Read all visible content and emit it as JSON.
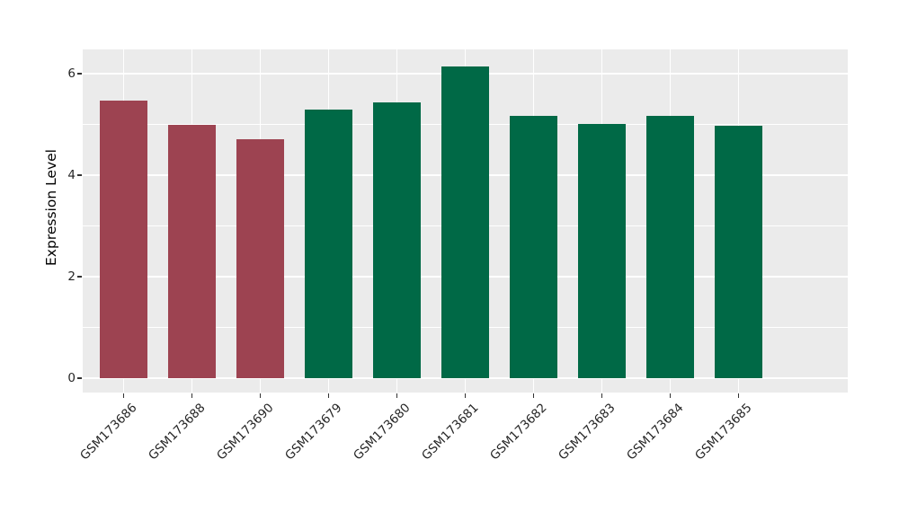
{
  "chart_data": {
    "type": "bar",
    "title": "",
    "xlabel": "",
    "ylabel": "Expression Level",
    "categories": [
      "GSM173686",
      "GSM173688",
      "GSM173690",
      "GSM173679",
      "GSM173680",
      "GSM173681",
      "GSM173682",
      "GSM173683",
      "GSM173684",
      "GSM173685"
    ],
    "values": [
      5.47,
      4.99,
      4.71,
      5.29,
      5.43,
      6.14,
      5.17,
      5.01,
      5.17,
      4.97
    ],
    "bar_colors": [
      "#9D4351",
      "#9D4351",
      "#9D4351",
      "#006946",
      "#006946",
      "#006946",
      "#006946",
      "#006946",
      "#006946",
      "#006946"
    ],
    "ylim": [
      -0.28,
      6.48
    ],
    "yticks_major": [
      0,
      2,
      4,
      6
    ],
    "yticks_minor": [
      1,
      3,
      5
    ],
    "ytick_labels": [
      "0",
      "2",
      "4",
      "6"
    ],
    "x_tick_rotation_deg": 45,
    "grid": "on",
    "legend": "none",
    "panel_bg_color": "#EBEBEB",
    "grid_color": "#FFFFFF",
    "tick_mark_color": "#333333",
    "tick_text_color": "#262626",
    "axis_title_color": "#000000"
  }
}
